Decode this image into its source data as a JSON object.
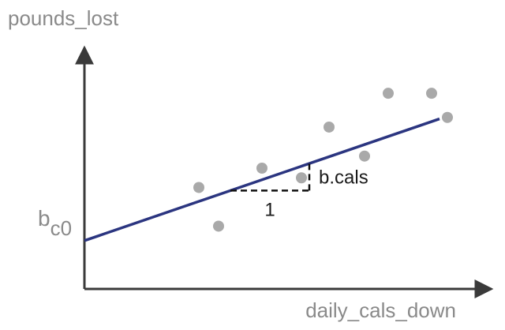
{
  "chart_data": {
    "type": "scatter",
    "title": "",
    "xlabel": "daily_cals_down",
    "ylabel": "pounds_lost",
    "axes_ticks": false,
    "grid": false,
    "points": [
      {
        "x": 0.29,
        "y": 0.42
      },
      {
        "x": 0.34,
        "y": 0.26
      },
      {
        "x": 0.45,
        "y": 0.5
      },
      {
        "x": 0.55,
        "y": 0.46
      },
      {
        "x": 0.62,
        "y": 0.67
      },
      {
        "x": 0.71,
        "y": 0.55
      },
      {
        "x": 0.77,
        "y": 0.81
      },
      {
        "x": 0.88,
        "y": 0.81
      },
      {
        "x": 0.92,
        "y": 0.71
      }
    ],
    "fit_line": {
      "intercept": 0.2,
      "slope": 0.56,
      "x_range": [
        0.0,
        1.0
      ]
    },
    "annotations": {
      "intercept_label_base": "b",
      "intercept_label_sub": "c0",
      "run_label": "1",
      "rise_label": "b.cals",
      "triangle_x_range": [
        0.37,
        0.57
      ]
    },
    "colors": {
      "axis": "#3a3a3a",
      "line": "#2b3580",
      "point": "#a9a9a9",
      "dash": "#111111"
    }
  }
}
